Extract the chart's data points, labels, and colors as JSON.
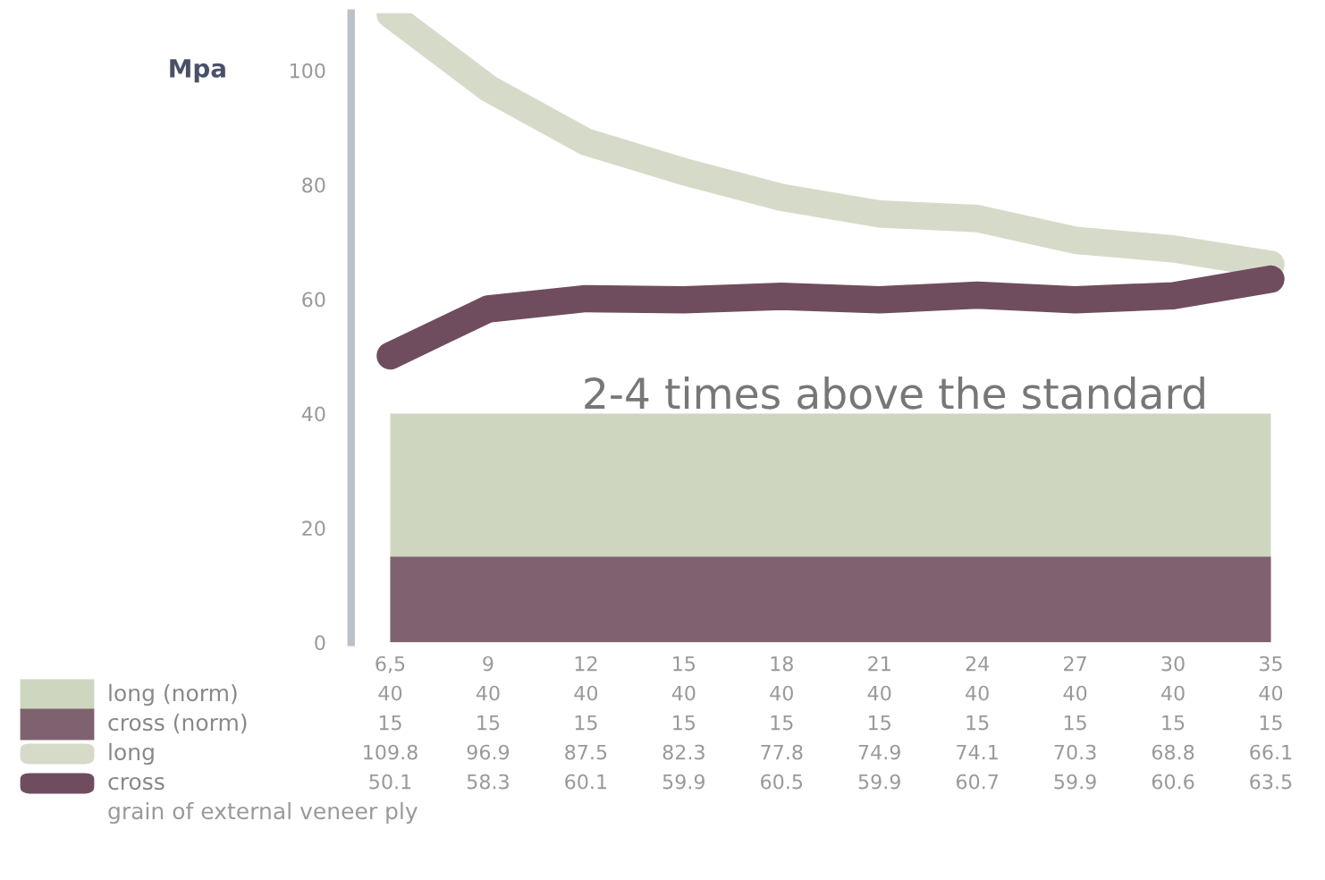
{
  "chart_data": {
    "type": "line",
    "ylabel": "Mpa",
    "categories": [
      "6,5",
      "9",
      "12",
      "15",
      "18",
      "21",
      "24",
      "27",
      "30",
      "35"
    ],
    "series": [
      {
        "name": "long (norm)",
        "type": "area",
        "color": "#cfd6c0",
        "values": [
          40,
          40,
          40,
          40,
          40,
          40,
          40,
          40,
          40,
          40
        ]
      },
      {
        "name": "cross (norm)",
        "type": "area",
        "color": "#7f6270",
        "values": [
          15,
          15,
          15,
          15,
          15,
          15,
          15,
          15,
          15,
          15
        ]
      },
      {
        "name": "long",
        "color": "#d5dbc8",
        "values": [
          109.8,
          96.9,
          87.5,
          82.3,
          77.8,
          74.9,
          74.1,
          70.3,
          68.8,
          66.1
        ]
      },
      {
        "name": "cross",
        "color": "#6f4d5f",
        "values": [
          50.1,
          58.3,
          60.1,
          59.9,
          60.5,
          59.9,
          60.7,
          59.9,
          60.6,
          63.5
        ]
      }
    ],
    "ylim": [
      0,
      110
    ],
    "yticks": [
      0,
      20,
      40,
      60,
      80,
      100
    ],
    "data_labels": true,
    "legend": "bottom left",
    "grid": false,
    "annotations": [
      "2-4 times above the standard",
      "grain of external veneer ply"
    ]
  }
}
